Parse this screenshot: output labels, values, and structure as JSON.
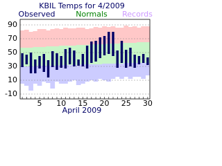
{
  "chart_data": {
    "type": "temperature-range",
    "title": "KBIL Temps for 4/2009",
    "x_label": "April 2009",
    "x": [
      1,
      2,
      3,
      4,
      5,
      6,
      7,
      8,
      9,
      10,
      11,
      12,
      13,
      14,
      15,
      16,
      17,
      18,
      19,
      20,
      21,
      22,
      23,
      24,
      25,
      26,
      27,
      28,
      29,
      30
    ],
    "xlim": [
      0.5,
      30.5
    ],
    "xticks": [
      5,
      10,
      15,
      20,
      25,
      30
    ],
    "ylim": [
      -17,
      98
    ],
    "yticks": [
      -10,
      10,
      30,
      50,
      70,
      90
    ],
    "grid": true,
    "series": [
      {
        "name": "Observed",
        "color": "#000066",
        "high": [
          49,
          47,
          50,
          40,
          45,
          48,
          39,
          52,
          49,
          45,
          55,
          57,
          53,
          40,
          48,
          60,
          66,
          67,
          72,
          74,
          80,
          80,
          53,
          67,
          54,
          57,
          47,
          45,
          48,
          43
        ],
        "low": [
          29,
          33,
          20,
          20,
          27,
          22,
          14,
          29,
          25,
          28,
          27,
          33,
          30,
          31,
          30,
          27,
          35,
          37,
          42,
          46,
          48,
          45,
          28,
          35,
          28,
          30,
          28,
          33,
          35,
          32
        ]
      },
      {
        "name": "Normals",
        "color": "#008000",
        "band_color": "#c8f5c8",
        "high": [
          57,
          57,
          57,
          58,
          58,
          58,
          59,
          59,
          59,
          60,
          60,
          60,
          60,
          61,
          61,
          61,
          62,
          62,
          62,
          62,
          63,
          63,
          63,
          64,
          64,
          64,
          64,
          65,
          65,
          65
        ],
        "low": [
          30,
          30,
          30,
          30,
          31,
          31,
          31,
          31,
          31,
          32,
          32,
          32,
          32,
          32,
          33,
          33,
          33,
          33,
          33,
          34,
          34,
          34,
          34,
          34,
          35,
          35,
          35,
          35,
          35,
          35
        ]
      },
      {
        "name": "Records",
        "color": "#cc99ff",
        "band_color": "#ccccff",
        "high_color": "#ffc8c8",
        "high": [
          82,
          83,
          80,
          81,
          84,
          84,
          82,
          84,
          85,
          84,
          86,
          85,
          85,
          86,
          86,
          84,
          85,
          87,
          86,
          88,
          87,
          88,
          86,
          86,
          89,
          87,
          88,
          86,
          88,
          88
        ],
        "low": [
          5,
          2,
          -5,
          5,
          2,
          8,
          6,
          -2,
          8,
          5,
          5,
          8,
          10,
          3,
          5,
          8,
          10,
          8,
          12,
          10,
          8,
          12,
          15,
          12,
          15,
          12,
          15,
          15,
          12,
          17
        ]
      }
    ]
  }
}
